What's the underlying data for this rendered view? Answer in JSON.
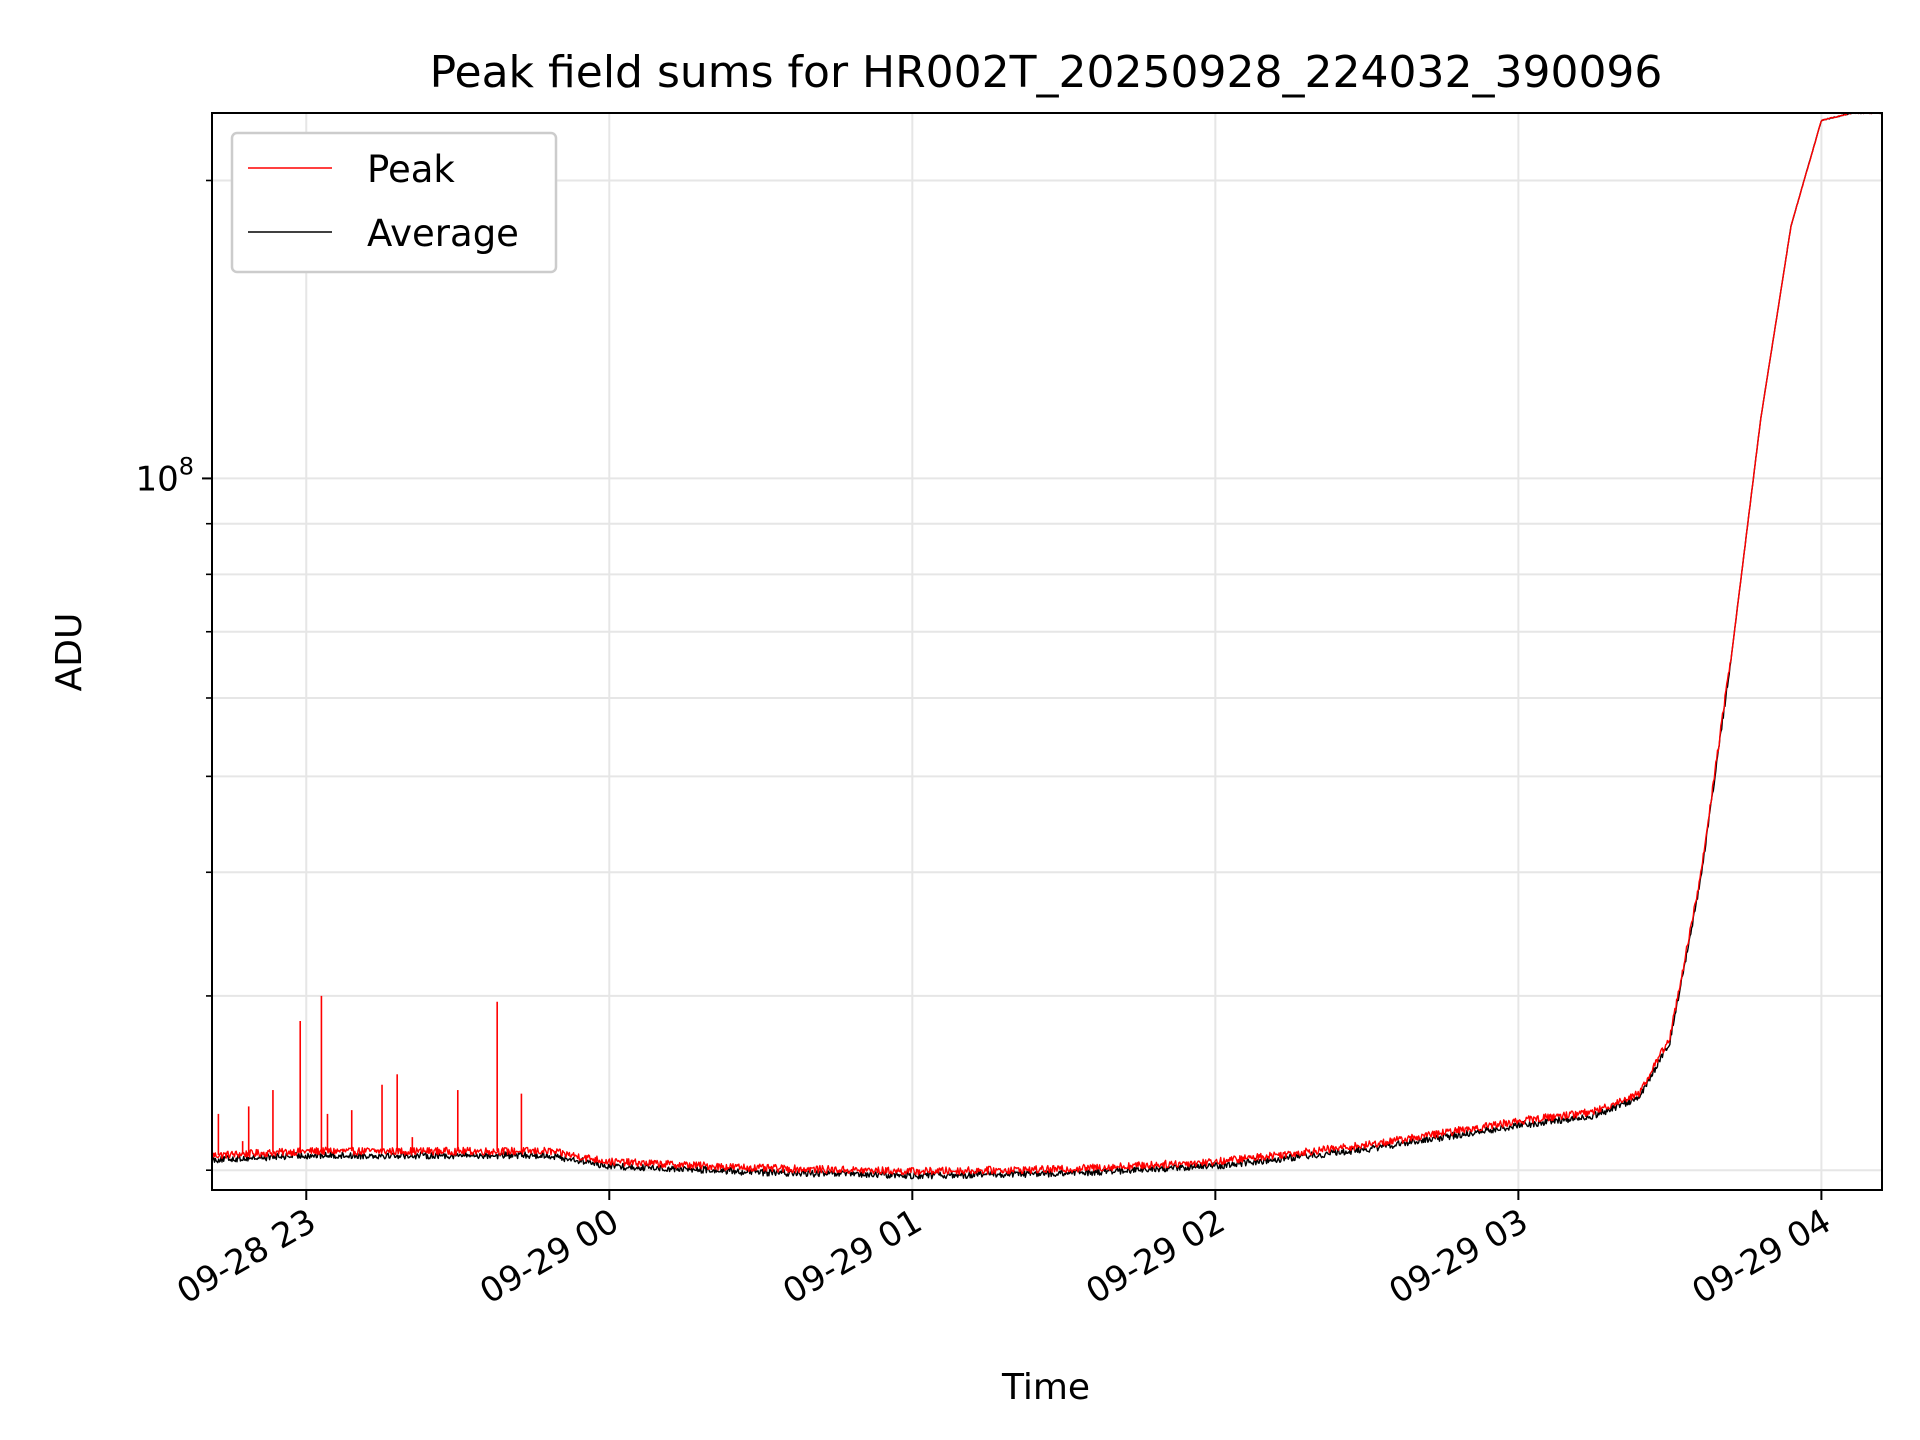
{
  "chart_data": {
    "type": "line",
    "title": "Peak field sums for HR002T_20250928_224032_390096",
    "xlabel": "Time",
    "ylabel": "ADU",
    "yscale": "log",
    "ylim": [
      19100000,
      234000000
    ],
    "xlim_hours": [
      -0.3111,
      5.2
    ],
    "grid": true,
    "legend_position": "top-left",
    "x_ticks": [
      {
        "hour": 0,
        "label": "09-28 23"
      },
      {
        "hour": 1,
        "label": "09-29 00"
      },
      {
        "hour": 2,
        "label": "09-29 01"
      },
      {
        "hour": 3,
        "label": "09-29 02"
      },
      {
        "hour": 4,
        "label": "09-29 03"
      },
      {
        "hour": 5,
        "label": "09-29 04"
      }
    ],
    "y_major_ticks": [
      {
        "value": 100000000,
        "base": "10",
        "exp": "8"
      }
    ],
    "y_minor_ticks": [
      20000000,
      30000000,
      40000000,
      50000000,
      60000000,
      70000000,
      80000000,
      90000000,
      200000000
    ],
    "baseline_anchors": [
      {
        "hour": -0.3111,
        "value": 20500000
      },
      {
        "hour": 0.0,
        "value": 20700000
      },
      {
        "hour": 0.5,
        "value": 20700000
      },
      {
        "hour": 0.8,
        "value": 20700000
      },
      {
        "hour": 1.0,
        "value": 20200000
      },
      {
        "hour": 1.5,
        "value": 19900000
      },
      {
        "hour": 2.0,
        "value": 19750000
      },
      {
        "hour": 2.5,
        "value": 19850000
      },
      {
        "hour": 3.0,
        "value": 20200000
      },
      {
        "hour": 3.5,
        "value": 21000000
      },
      {
        "hour": 4.0,
        "value": 22200000
      },
      {
        "hour": 4.25,
        "value": 22700000
      },
      {
        "hour": 4.4,
        "value": 23700000
      },
      {
        "hour": 4.5,
        "value": 27000000
      },
      {
        "hour": 4.6,
        "value": 39000000
      },
      {
        "hour": 4.7,
        "value": 65000000
      },
      {
        "hour": 4.8,
        "value": 115000000
      },
      {
        "hour": 4.9,
        "value": 180000000
      },
      {
        "hour": 5.0,
        "value": 230000000
      },
      {
        "hour": 5.1,
        "value": 234000000
      },
      {
        "hour": 5.2,
        "value": 234000000
      }
    ],
    "peak_spikes": [
      {
        "hour": -0.29,
        "value": 22800000
      },
      {
        "hour": -0.21,
        "value": 21400000
      },
      {
        "hour": -0.19,
        "value": 23200000
      },
      {
        "hour": -0.11,
        "value": 24100000
      },
      {
        "hour": -0.02,
        "value": 28300000
      },
      {
        "hour": 0.05,
        "value": 30000000
      },
      {
        "hour": 0.07,
        "value": 22800000
      },
      {
        "hour": 0.15,
        "value": 23000000
      },
      {
        "hour": 0.25,
        "value": 24400000
      },
      {
        "hour": 0.3,
        "value": 25000000
      },
      {
        "hour": 0.35,
        "value": 21600000
      },
      {
        "hour": 0.5,
        "value": 24100000
      },
      {
        "hour": 0.63,
        "value": 29600000
      },
      {
        "hour": 0.71,
        "value": 23900000
      }
    ],
    "series": [
      {
        "name": "Peak",
        "color": "#ff0000",
        "noise_fraction": 0.009,
        "offset_fraction": 0.01
      },
      {
        "name": "Average",
        "color": "#000000",
        "noise_fraction": 0.008,
        "offset_fraction": 0.0
      }
    ]
  }
}
